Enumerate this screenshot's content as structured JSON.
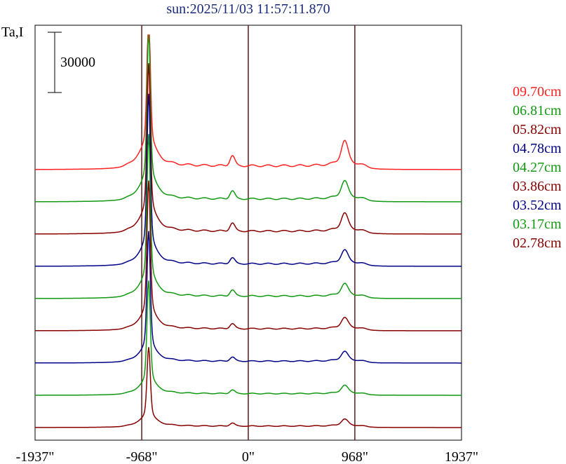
{
  "chart_data": {
    "type": "line",
    "title": "sun:2025/11/03 11:57:11.870",
    "ylabel": "Ta,I",
    "scale_bar_label": "30000",
    "xlim": [
      -1937,
      1937
    ],
    "xticks": [
      {
        "value": -1937,
        "label": "-1937\""
      },
      {
        "value": -968,
        "label": "-968\""
      },
      {
        "value": 0,
        "label": "0\""
      },
      {
        "value": 968,
        "label": "968\""
      },
      {
        "value": 1937,
        "label": "1937\""
      }
    ],
    "vlines": [
      -968,
      0,
      968
    ],
    "vline_color": "#5a1a1a",
    "series": [
      {
        "name": "09.70cm",
        "color": "#ff2222",
        "offset": 6,
        "peak_main": 68000,
        "peak_left": 5000,
        "peak_right": 9000,
        "plateau": 1800,
        "wing": 9000
      },
      {
        "name": "06.81cm",
        "color": "#119911",
        "offset": 5,
        "peak_main": 76000,
        "peak_left": 4000,
        "peak_right": 6500,
        "plateau": 1400,
        "wing": 8000
      },
      {
        "name": "05.82cm",
        "color": "#880000",
        "offset": 4,
        "peak_main": 76000,
        "peak_left": 4000,
        "peak_right": 6500,
        "plateau": 1400,
        "wing": 8000
      },
      {
        "name": "04.78cm",
        "color": "#000088",
        "offset": 3,
        "peak_main": 78000,
        "peak_left": 3000,
        "peak_right": 5000,
        "plateau": 1200,
        "wing": 7000
      },
      {
        "name": "04.27cm",
        "color": "#119911",
        "offset": 2,
        "peak_main": 74000,
        "peak_left": 3000,
        "peak_right": 4500,
        "plateau": 1200,
        "wing": 7000
      },
      {
        "name": "03.86cm",
        "color": "#880000",
        "offset": 1,
        "peak_main": 68000,
        "peak_left": 2500,
        "peak_right": 4000,
        "plateau": 1000,
        "wing": 6000
      },
      {
        "name": "03.52cm",
        "color": "#000088",
        "offset": 0,
        "peak_main": 60000,
        "peak_left": 2000,
        "peak_right": 3500,
        "plateau": 900,
        "wing": 5000
      },
      {
        "name": "03.17cm",
        "color": "#119911",
        "offset": -1,
        "peak_main": 52000,
        "peak_left": 1800,
        "peak_right": 3000,
        "plateau": 800,
        "wing": 4500
      },
      {
        "name": "02.78cm",
        "color": "#880000",
        "offset": -2,
        "peak_main": 36000,
        "peak_left": 1500,
        "peak_right": 2500,
        "plateau": 700,
        "wing": 3500
      }
    ]
  }
}
